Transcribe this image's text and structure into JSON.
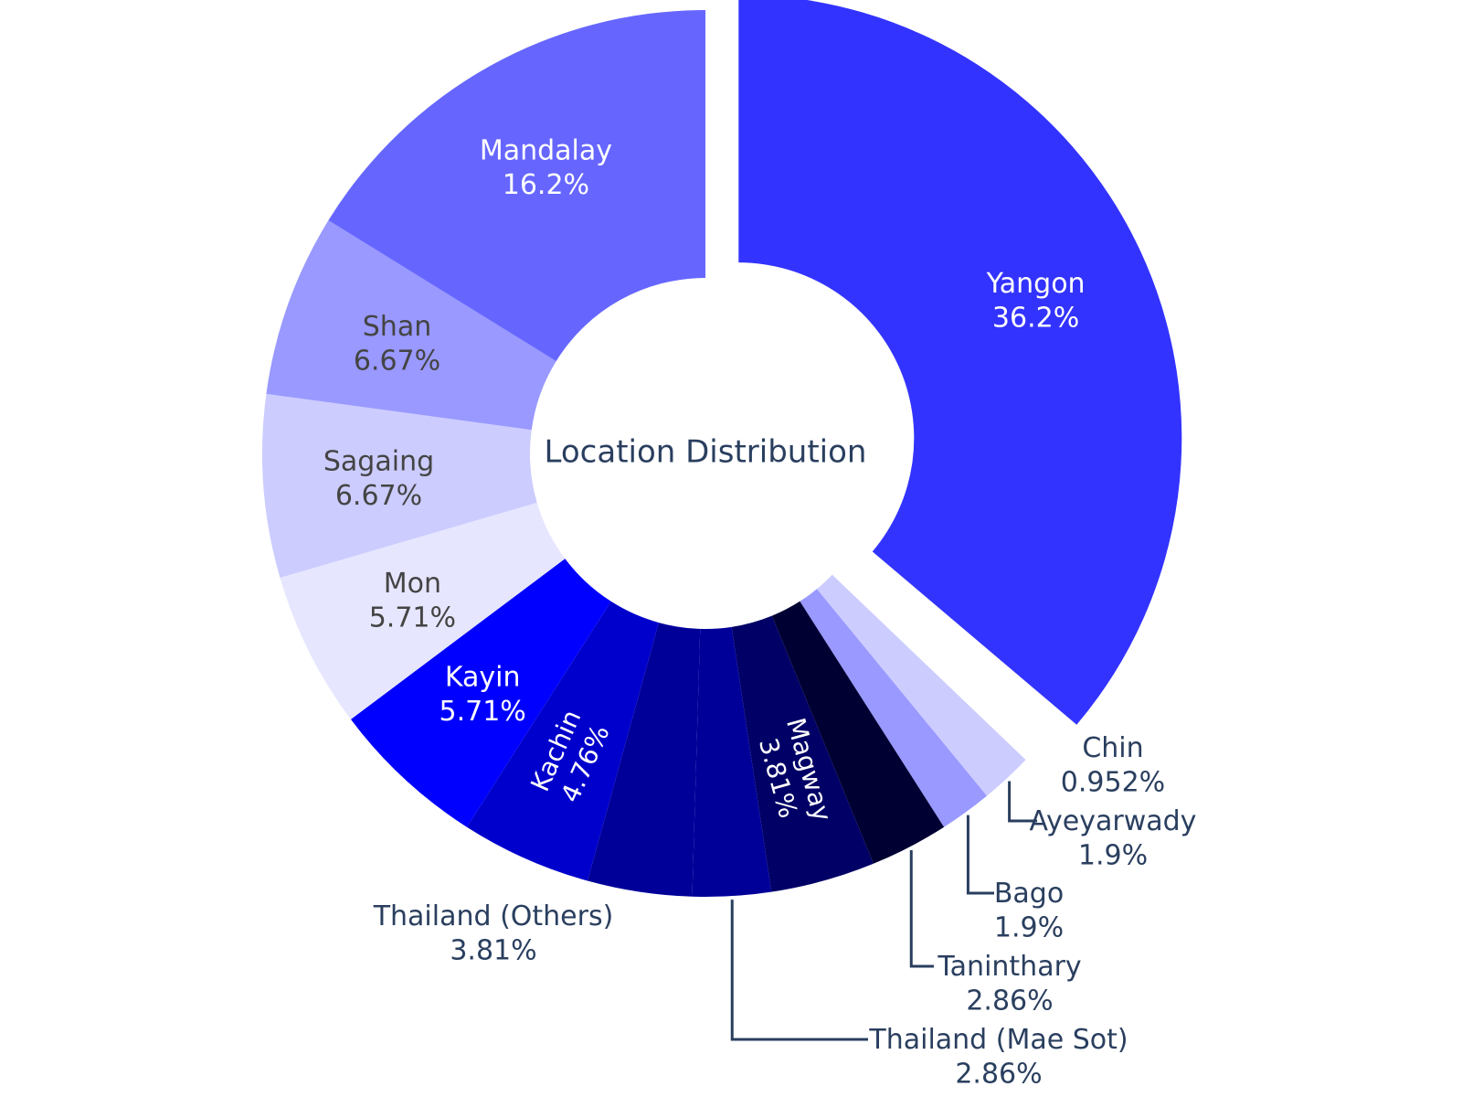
{
  "chart_data": {
    "type": "pie",
    "hole": true,
    "center_label": "Location Distribution",
    "direction": "clockwise",
    "start_angle_deg": 0,
    "text_color_light": "#ffffff",
    "text_color_dark": "#444444",
    "outside_text_color": "#2a3f5f",
    "leader_color": "#2a3f5f",
    "slices": [
      {
        "label": "Yangon",
        "value": 38,
        "percent_text": "36.2%",
        "color": "#3333ff",
        "text_pos": "inside",
        "text_color": "light",
        "pull": 0.07
      },
      {
        "label": "Chin",
        "value": 1,
        "percent_text": "0.952%",
        "color": "#ffffff",
        "text_pos": "outside",
        "text_color": "dark",
        "pull": 0
      },
      {
        "label": "Ayeyarwady",
        "value": 2,
        "percent_text": "1.9%",
        "color": "#ccccff",
        "text_pos": "outside",
        "text_color": "dark",
        "pull": 0
      },
      {
        "label": "Bago",
        "value": 2,
        "percent_text": "1.9%",
        "color": "#9999ff",
        "text_pos": "outside",
        "text_color": "dark",
        "pull": 0
      },
      {
        "label": "Taninthary",
        "value": 3,
        "percent_text": "2.86%",
        "color": "#000033",
        "text_pos": "outside",
        "text_color": "dark",
        "pull": 0
      },
      {
        "label": "Magway",
        "value": 4,
        "percent_text": "3.81%",
        "color": "#000066",
        "text_pos": "inside-radial",
        "text_color": "light",
        "pull": 0
      },
      {
        "label": "Thailand (Mae Sot)",
        "value": 3,
        "percent_text": "2.86%",
        "color": "#000099",
        "text_pos": "outside",
        "text_color": "dark",
        "pull": 0
      },
      {
        "label": "Thailand (Others)",
        "value": 4,
        "percent_text": "3.81%",
        "color": "#000099",
        "text_pos": "outside",
        "text_color": "dark",
        "pull": 0
      },
      {
        "label": "Kachin",
        "value": 5,
        "percent_text": "4.76%",
        "color": "#0000cc",
        "text_pos": "inside-radial",
        "text_color": "light",
        "pull": 0
      },
      {
        "label": "Kayin",
        "value": 6,
        "percent_text": "5.71%",
        "color": "#0000ff",
        "text_pos": "inside",
        "text_color": "light",
        "pull": 0
      },
      {
        "label": "Mon",
        "value": 6,
        "percent_text": "5.71%",
        "color": "#e6e6ff",
        "text_pos": "inside",
        "text_color": "dark",
        "pull": 0
      },
      {
        "label": "Sagaing",
        "value": 7,
        "percent_text": "6.67%",
        "color": "#ccccff",
        "text_pos": "inside",
        "text_color": "dark",
        "pull": 0
      },
      {
        "label": "Shan",
        "value": 7,
        "percent_text": "6.67%",
        "color": "#9999ff",
        "text_pos": "inside",
        "text_color": "dark",
        "pull": 0
      },
      {
        "label": "Mandalay",
        "value": 17,
        "percent_text": "16.2%",
        "color": "#6666ff",
        "text_pos": "inside",
        "text_color": "light",
        "pull": 0
      }
    ]
  }
}
